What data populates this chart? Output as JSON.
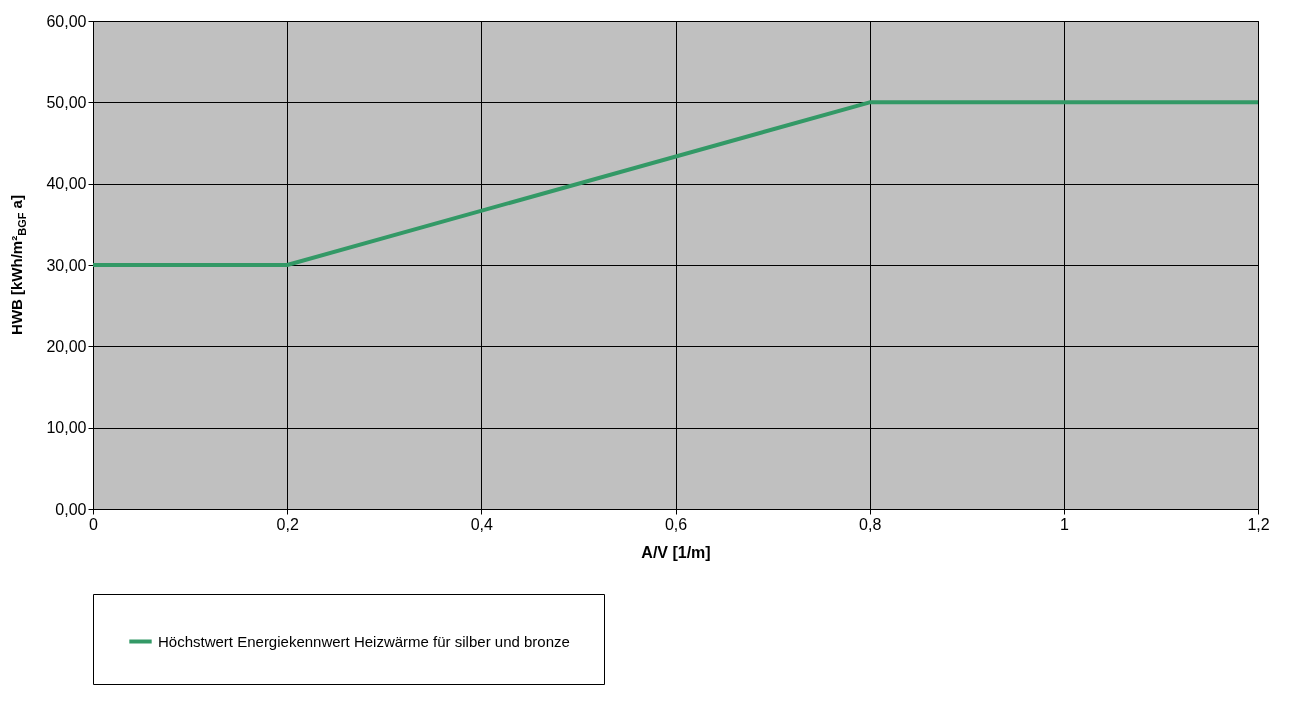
{
  "chart_data": {
    "type": "line",
    "xlabel": "A/V [1/m]",
    "ylabel": "HWB [kWh/m²$_{BGF}$ a]",
    "x": [
      0,
      0.2,
      0.8,
      1.2
    ],
    "series": [
      {
        "name": "Höchstwert Energiekennwert Heizwärme für silber und bronze",
        "color": "#339966",
        "values": [
          30,
          30,
          50,
          50
        ]
      }
    ],
    "xlim": [
      0,
      1.2
    ],
    "xticks": [
      0,
      {
        "value": 0.2,
        "label": "0,2"
      },
      {
        "value": 0.4,
        "label": "0,4"
      },
      {
        "value": 0.6,
        "label": "0,6"
      },
      {
        "value": 0.8,
        "label": "0,8"
      },
      1,
      {
        "value": 1.2,
        "label": "1,2"
      }
    ],
    "ylim": [
      0,
      60
    ],
    "yticks": [
      {
        "value": 0,
        "label": "0,00"
      },
      {
        "value": 10,
        "label": "10,00"
      },
      {
        "value": 20,
        "label": "20,00"
      },
      {
        "value": 30,
        "label": "30,00"
      },
      {
        "value": 40,
        "label": "40,00"
      },
      {
        "value": 50,
        "label": "50,00"
      },
      {
        "value": 60,
        "label": "60,00"
      }
    ],
    "grid": true,
    "legend": "bottom",
    "marker": "none",
    "line_style": "solid"
  }
}
